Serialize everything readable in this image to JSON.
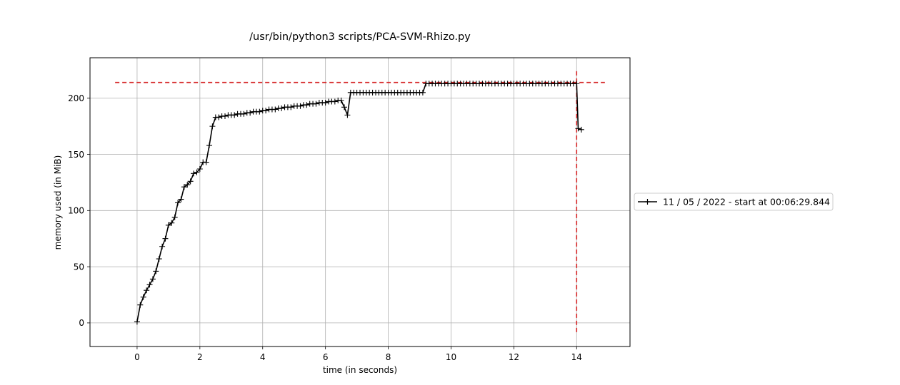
{
  "chart_data": {
    "type": "line",
    "title": "/usr/bin/python3 scripts/PCA-SVM-Rhizo.py",
    "xlabel": "time (in seconds)",
    "ylabel": "memory used (in MiB)",
    "xlim": [
      -1.5,
      15.7
    ],
    "ylim": [
      -21,
      236
    ],
    "xticks": [
      0,
      2,
      4,
      6,
      8,
      10,
      12,
      14
    ],
    "yticks": [
      0,
      50,
      100,
      150,
      200
    ],
    "grid": true,
    "legend_position": "right, outside plot",
    "series": [
      {
        "name": "11 / 05 / 2022 - start at 00:06:29.844",
        "color": "#000000",
        "marker": "+",
        "x": [
          0,
          0.1,
          0.2,
          0.3,
          0.4,
          0.5,
          0.6,
          0.7,
          0.8,
          0.9,
          1.0,
          1.1,
          1.2,
          1.3,
          1.4,
          1.5,
          1.6,
          1.7,
          1.8,
          1.9,
          2.0,
          2.1,
          2.2,
          2.3,
          2.4,
          2.5,
          2.6,
          2.7,
          2.8,
          2.9,
          3.0,
          3.1,
          3.2,
          3.3,
          3.4,
          3.5,
          3.6,
          3.7,
          3.8,
          3.9,
          4.0,
          4.1,
          4.2,
          4.3,
          4.4,
          4.5,
          4.6,
          4.7,
          4.8,
          4.9,
          5.0,
          5.1,
          5.2,
          5.3,
          5.4,
          5.5,
          5.6,
          5.7,
          5.8,
          5.9,
          6.0,
          6.1,
          6.2,
          6.3,
          6.4,
          6.5,
          6.6,
          6.7,
          6.8,
          6.9,
          7.0,
          7.1,
          7.2,
          7.3,
          7.4,
          7.5,
          7.6,
          7.7,
          7.8,
          7.9,
          8.0,
          8.1,
          8.2,
          8.3,
          8.4,
          8.5,
          8.6,
          8.7,
          8.8,
          8.9,
          9.0,
          9.1,
          9.2,
          9.3,
          9.4,
          9.5,
          9.6,
          9.7,
          9.8,
          9.9,
          10.0,
          10.1,
          10.2,
          10.3,
          10.4,
          10.5,
          10.6,
          10.7,
          10.8,
          10.9,
          11.0,
          11.1,
          11.2,
          11.3,
          11.4,
          11.5,
          11.6,
          11.7,
          11.8,
          11.9,
          12.0,
          12.1,
          12.2,
          12.3,
          12.4,
          12.5,
          12.6,
          12.7,
          12.8,
          12.9,
          13.0,
          13.1,
          13.2,
          13.3,
          13.4,
          13.5,
          13.6,
          13.7,
          13.8,
          13.9,
          14.0,
          14.05,
          14.15
        ],
        "y": [
          1,
          16,
          23,
          29,
          34,
          39,
          46,
          57,
          68,
          75,
          87,
          89,
          94,
          107,
          110,
          121,
          123,
          126,
          133,
          134,
          137,
          143,
          143,
          158,
          175,
          183,
          183,
          184,
          184,
          185,
          185,
          185,
          186,
          186,
          186,
          187,
          187,
          188,
          188,
          188,
          189,
          189,
          190,
          190,
          190,
          191,
          191,
          192,
          192,
          192,
          193,
          193,
          193,
          194,
          194,
          195,
          195,
          195,
          196,
          196,
          196,
          197,
          197,
          197,
          198,
          198,
          192,
          185,
          205,
          205,
          205,
          205,
          205,
          205,
          205,
          205,
          205,
          205,
          205,
          205,
          205,
          205,
          205,
          205,
          205,
          205,
          205,
          205,
          205,
          205,
          205,
          205,
          213,
          213,
          213,
          213,
          213,
          213,
          213,
          213,
          213,
          213,
          213,
          213,
          213,
          213,
          213,
          213,
          213,
          213,
          213,
          213,
          213,
          213,
          213,
          213,
          213,
          213,
          213,
          213,
          213,
          213,
          213,
          213,
          213,
          213,
          213,
          213,
          213,
          213,
          213,
          213,
          213,
          213,
          213,
          213,
          213,
          213,
          213,
          213,
          213,
          173,
          172
        ]
      }
    ],
    "reference_lines": [
      {
        "orientation": "horizontal",
        "value": 214,
        "from": -0.7,
        "to": 14.9,
        "color": "#d62728",
        "style": "dashed"
      },
      {
        "orientation": "vertical",
        "value": 14.0,
        "from": -9,
        "to": 224,
        "color": "#d62728",
        "style": "dashed"
      }
    ]
  }
}
